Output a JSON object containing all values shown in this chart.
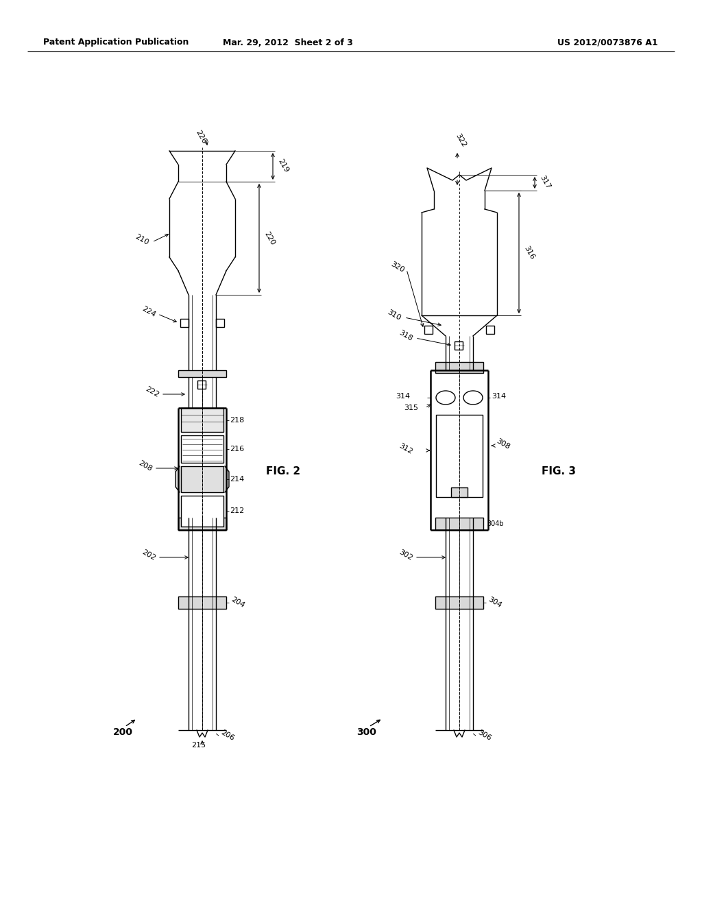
{
  "background_color": "#ffffff",
  "header_left": "Patent Application Publication",
  "header_center": "Mar. 29, 2012  Sheet 2 of 3",
  "header_right": "US 2012/0073876 A1",
  "fig2_label": "FIG. 2",
  "fig3_label": "FIG. 3",
  "fig2_ref": "200",
  "fig3_ref": "300",
  "line_color": "#000000",
  "lw": 1.0,
  "tlw": 1.8
}
